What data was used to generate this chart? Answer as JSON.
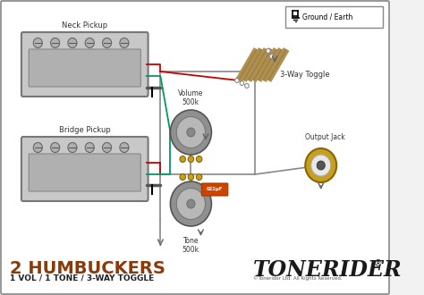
{
  "bg_color": "#f2f2f2",
  "border_color": "#999999",
  "title": "2 HUMBUCKERS",
  "subtitle": "1 VOL / 1 TONE / 3-WAY TOGGLE",
  "brand": "TONERIDER",
  "brand_trademark": "®",
  "brand_sub": "©Tonerider Ltd. All Rights Reserved.",
  "ground_label": "Ground / Earth",
  "neck_label": "Neck Pickup",
  "bridge_label": "Bridge Pickup",
  "toggle_label": "3-Way Toggle",
  "volume_label": "Volume\n500k",
  "tone_label": "Tone\n500k",
  "output_label": "Output Jack",
  "wire_red": "#cc0000",
  "wire_green": "#009966",
  "wire_gray": "#888888",
  "wire_black": "#333333",
  "pickup_fill": "#c8c8c8",
  "pickup_stroke": "#888888",
  "pot_outer": "#909090",
  "pot_inner": "#b8b8b8",
  "pot_gold": "#c8a020",
  "cap_fill": "#cc4400",
  "jack_outer": "#c8a020",
  "toggle_tan": "#b09050",
  "toggle_tan2": "#a08040",
  "title_color": "#8B3A0A",
  "brand_color": "#1a1a1a"
}
